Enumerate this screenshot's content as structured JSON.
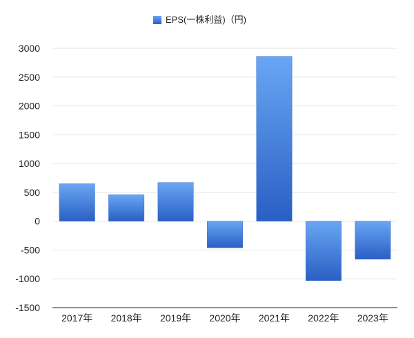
{
  "chart_data": {
    "type": "bar",
    "title": "",
    "xlabel": "",
    "ylabel": "",
    "categories": [
      "2017年",
      "2018年",
      "2019年",
      "2020年",
      "2021年",
      "2022年",
      "2023年"
    ],
    "series": [
      {
        "name": "EPS(一株利益)（円)",
        "values": [
          650,
          460,
          670,
          -460,
          2860,
          -1030,
          -660
        ]
      }
    ],
    "ylim": [
      -1500,
      3000
    ],
    "yticks": [
      3000,
      2500,
      2000,
      1500,
      1000,
      500,
      0,
      -500,
      -1000,
      -1500
    ],
    "grid": true,
    "legend": "top-center",
    "colors": {
      "bar_top": "#69a6f3",
      "bar_bottom": "#2a5fc4",
      "grid": "#e3e3e3",
      "axis": "#222222"
    }
  }
}
